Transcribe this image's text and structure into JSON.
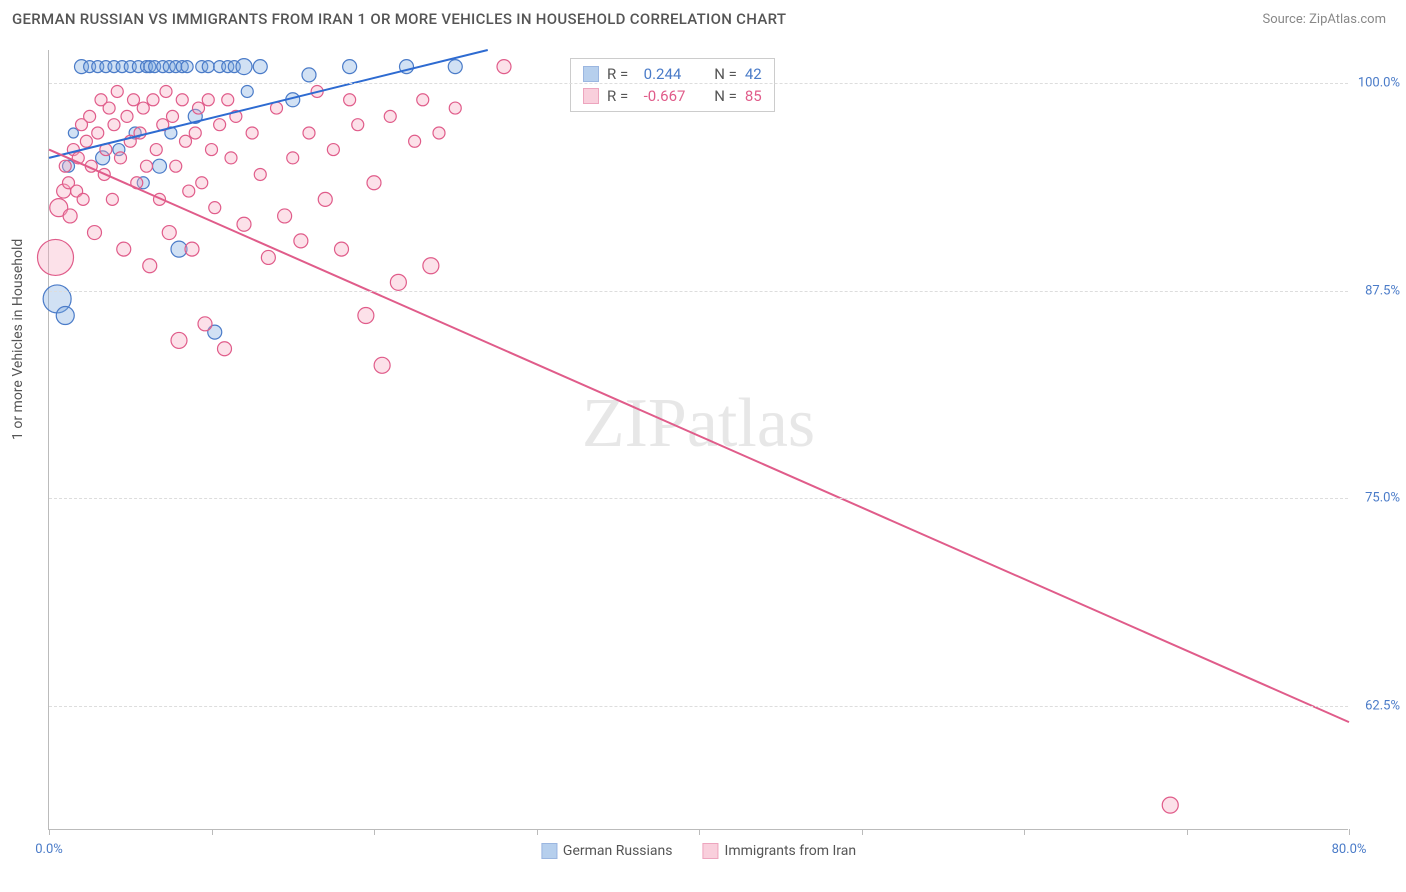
{
  "title": "GERMAN RUSSIAN VS IMMIGRANTS FROM IRAN 1 OR MORE VEHICLES IN HOUSEHOLD CORRELATION CHART",
  "source": "Source: ZipAtlas.com",
  "ylabel": "1 or more Vehicles in Household",
  "watermark_a": "ZIP",
  "watermark_b": "atlas",
  "chart": {
    "type": "scatter",
    "xlim": [
      0,
      80
    ],
    "ylim": [
      55,
      102
    ],
    "x_ticks": [
      0,
      10,
      20,
      30,
      40,
      50,
      60,
      70,
      80
    ],
    "x_tick_labels": {
      "0": "0.0%",
      "80": "80.0%"
    },
    "y_ticks": [
      62.5,
      75.0,
      87.5,
      100.0
    ],
    "y_tick_labels": [
      "62.5%",
      "75.0%",
      "87.5%",
      "100.0%"
    ],
    "grid_color": "#dddddd",
    "axis_color": "#bbbbbb",
    "background_color": "#ffffff",
    "tick_label_color": "#4a7bc8",
    "series": [
      {
        "name": "German Russians",
        "fill": "#7ca8e0",
        "fill_opacity": 0.35,
        "stroke": "#4a7bc8",
        "stroke_width": 1.2,
        "R": "0.244",
        "N": "42",
        "r_color": "#4a7bc8",
        "trend": {
          "x1": 0,
          "y1": 95.5,
          "x2": 27,
          "y2": 102,
          "color": "#2e6bd1",
          "width": 2
        },
        "points": [
          {
            "x": 0.5,
            "y": 87.0,
            "r": 14
          },
          {
            "x": 1.0,
            "y": 86.0,
            "r": 9
          },
          {
            "x": 1.2,
            "y": 95.0,
            "r": 6
          },
          {
            "x": 1.5,
            "y": 97.0,
            "r": 5
          },
          {
            "x": 2.0,
            "y": 101.0,
            "r": 7
          },
          {
            "x": 2.5,
            "y": 101.0,
            "r": 6
          },
          {
            "x": 3.0,
            "y": 101.0,
            "r": 6
          },
          {
            "x": 3.3,
            "y": 95.5,
            "r": 7
          },
          {
            "x": 3.5,
            "y": 101.0,
            "r": 6
          },
          {
            "x": 4.0,
            "y": 101.0,
            "r": 6
          },
          {
            "x": 4.3,
            "y": 96.0,
            "r": 6
          },
          {
            "x": 4.5,
            "y": 101.0,
            "r": 6
          },
          {
            "x": 5.0,
            "y": 101.0,
            "r": 6
          },
          {
            "x": 5.3,
            "y": 97.0,
            "r": 6
          },
          {
            "x": 5.5,
            "y": 101.0,
            "r": 6
          },
          {
            "x": 5.8,
            "y": 94.0,
            "r": 6
          },
          {
            "x": 6.0,
            "y": 101.0,
            "r": 6
          },
          {
            "x": 6.2,
            "y": 101.0,
            "r": 6
          },
          {
            "x": 6.5,
            "y": 101.0,
            "r": 6
          },
          {
            "x": 6.8,
            "y": 95.0,
            "r": 7
          },
          {
            "x": 7.0,
            "y": 101.0,
            "r": 6
          },
          {
            "x": 7.4,
            "y": 101.0,
            "r": 6
          },
          {
            "x": 7.5,
            "y": 97.0,
            "r": 6
          },
          {
            "x": 7.8,
            "y": 101.0,
            "r": 6
          },
          {
            "x": 8.0,
            "y": 90.0,
            "r": 8
          },
          {
            "x": 8.2,
            "y": 101.0,
            "r": 6
          },
          {
            "x": 8.5,
            "y": 101.0,
            "r": 6
          },
          {
            "x": 9.0,
            "y": 98.0,
            "r": 7
          },
          {
            "x": 9.4,
            "y": 101.0,
            "r": 6
          },
          {
            "x": 9.8,
            "y": 101.0,
            "r": 6
          },
          {
            "x": 10.2,
            "y": 85.0,
            "r": 7
          },
          {
            "x": 10.5,
            "y": 101.0,
            "r": 6
          },
          {
            "x": 11.0,
            "y": 101.0,
            "r": 6
          },
          {
            "x": 11.4,
            "y": 101.0,
            "r": 6
          },
          {
            "x": 12.0,
            "y": 101.0,
            "r": 8
          },
          {
            "x": 12.2,
            "y": 99.5,
            "r": 6
          },
          {
            "x": 13.0,
            "y": 101.0,
            "r": 7
          },
          {
            "x": 15.0,
            "y": 99.0,
            "r": 7
          },
          {
            "x": 16.0,
            "y": 100.5,
            "r": 7
          },
          {
            "x": 18.5,
            "y": 101.0,
            "r": 7
          },
          {
            "x": 22.0,
            "y": 101.0,
            "r": 7
          },
          {
            "x": 25.0,
            "y": 101.0,
            "r": 7
          }
        ]
      },
      {
        "name": "Immigrants from Iran",
        "fill": "#f5a8c0",
        "fill_opacity": 0.35,
        "stroke": "#e05c8a",
        "stroke_width": 1.2,
        "R": "-0.667",
        "N": "85",
        "r_color": "#e05c8a",
        "trend": {
          "x1": 0,
          "y1": 96.0,
          "x2": 80,
          "y2": 61.5,
          "color": "#e05c8a",
          "width": 2
        },
        "points": [
          {
            "x": 0.4,
            "y": 89.5,
            "r": 18
          },
          {
            "x": 0.6,
            "y": 92.5,
            "r": 9
          },
          {
            "x": 0.9,
            "y": 93.5,
            "r": 7
          },
          {
            "x": 1.0,
            "y": 95.0,
            "r": 6
          },
          {
            "x": 1.2,
            "y": 94.0,
            "r": 6
          },
          {
            "x": 1.3,
            "y": 92.0,
            "r": 7
          },
          {
            "x": 1.5,
            "y": 96.0,
            "r": 6
          },
          {
            "x": 1.7,
            "y": 93.5,
            "r": 6
          },
          {
            "x": 1.8,
            "y": 95.5,
            "r": 6
          },
          {
            "x": 2.0,
            "y": 97.5,
            "r": 6
          },
          {
            "x": 2.1,
            "y": 93.0,
            "r": 6
          },
          {
            "x": 2.3,
            "y": 96.5,
            "r": 6
          },
          {
            "x": 2.5,
            "y": 98.0,
            "r": 6
          },
          {
            "x": 2.6,
            "y": 95.0,
            "r": 6
          },
          {
            "x": 2.8,
            "y": 91.0,
            "r": 7
          },
          {
            "x": 3.0,
            "y": 97.0,
            "r": 6
          },
          {
            "x": 3.2,
            "y": 99.0,
            "r": 6
          },
          {
            "x": 3.4,
            "y": 94.5,
            "r": 6
          },
          {
            "x": 3.5,
            "y": 96.0,
            "r": 6
          },
          {
            "x": 3.7,
            "y": 98.5,
            "r": 6
          },
          {
            "x": 3.9,
            "y": 93.0,
            "r": 6
          },
          {
            "x": 4.0,
            "y": 97.5,
            "r": 6
          },
          {
            "x": 4.2,
            "y": 99.5,
            "r": 6
          },
          {
            "x": 4.4,
            "y": 95.5,
            "r": 6
          },
          {
            "x": 4.6,
            "y": 90.0,
            "r": 7
          },
          {
            "x": 4.8,
            "y": 98.0,
            "r": 6
          },
          {
            "x": 5.0,
            "y": 96.5,
            "r": 6
          },
          {
            "x": 5.2,
            "y": 99.0,
            "r": 6
          },
          {
            "x": 5.4,
            "y": 94.0,
            "r": 6
          },
          {
            "x": 5.6,
            "y": 97.0,
            "r": 6
          },
          {
            "x": 5.8,
            "y": 98.5,
            "r": 6
          },
          {
            "x": 6.0,
            "y": 95.0,
            "r": 6
          },
          {
            "x": 6.2,
            "y": 89.0,
            "r": 7
          },
          {
            "x": 6.4,
            "y": 99.0,
            "r": 6
          },
          {
            "x": 6.6,
            "y": 96.0,
            "r": 6
          },
          {
            "x": 6.8,
            "y": 93.0,
            "r": 6
          },
          {
            "x": 7.0,
            "y": 97.5,
            "r": 6
          },
          {
            "x": 7.2,
            "y": 99.5,
            "r": 6
          },
          {
            "x": 7.4,
            "y": 91.0,
            "r": 7
          },
          {
            "x": 7.6,
            "y": 98.0,
            "r": 6
          },
          {
            "x": 7.8,
            "y": 95.0,
            "r": 6
          },
          {
            "x": 8.0,
            "y": 84.5,
            "r": 8
          },
          {
            "x": 8.2,
            "y": 99.0,
            "r": 6
          },
          {
            "x": 8.4,
            "y": 96.5,
            "r": 6
          },
          {
            "x": 8.6,
            "y": 93.5,
            "r": 6
          },
          {
            "x": 8.8,
            "y": 90.0,
            "r": 7
          },
          {
            "x": 9.0,
            "y": 97.0,
            "r": 6
          },
          {
            "x": 9.2,
            "y": 98.5,
            "r": 6
          },
          {
            "x": 9.4,
            "y": 94.0,
            "r": 6
          },
          {
            "x": 9.6,
            "y": 85.5,
            "r": 7
          },
          {
            "x": 9.8,
            "y": 99.0,
            "r": 6
          },
          {
            "x": 10.0,
            "y": 96.0,
            "r": 6
          },
          {
            "x": 10.2,
            "y": 92.5,
            "r": 6
          },
          {
            "x": 10.5,
            "y": 97.5,
            "r": 6
          },
          {
            "x": 10.8,
            "y": 84.0,
            "r": 7
          },
          {
            "x": 11.0,
            "y": 99.0,
            "r": 6
          },
          {
            "x": 11.2,
            "y": 95.5,
            "r": 6
          },
          {
            "x": 11.5,
            "y": 98.0,
            "r": 6
          },
          {
            "x": 12.0,
            "y": 91.5,
            "r": 7
          },
          {
            "x": 12.5,
            "y": 97.0,
            "r": 6
          },
          {
            "x": 13.0,
            "y": 94.5,
            "r": 6
          },
          {
            "x": 13.5,
            "y": 89.5,
            "r": 7
          },
          {
            "x": 14.0,
            "y": 98.5,
            "r": 6
          },
          {
            "x": 14.5,
            "y": 92.0,
            "r": 7
          },
          {
            "x": 15.0,
            "y": 95.5,
            "r": 6
          },
          {
            "x": 15.5,
            "y": 90.5,
            "r": 7
          },
          {
            "x": 16.0,
            "y": 97.0,
            "r": 6
          },
          {
            "x": 16.5,
            "y": 99.5,
            "r": 6
          },
          {
            "x": 17.0,
            "y": 93.0,
            "r": 7
          },
          {
            "x": 17.5,
            "y": 96.0,
            "r": 6
          },
          {
            "x": 18.0,
            "y": 90.0,
            "r": 7
          },
          {
            "x": 18.5,
            "y": 99.0,
            "r": 6
          },
          {
            "x": 19.0,
            "y": 97.5,
            "r": 6
          },
          {
            "x": 19.5,
            "y": 86.0,
            "r": 8
          },
          {
            "x": 20.0,
            "y": 94.0,
            "r": 7
          },
          {
            "x": 20.5,
            "y": 83.0,
            "r": 8
          },
          {
            "x": 21.0,
            "y": 98.0,
            "r": 6
          },
          {
            "x": 21.5,
            "y": 88.0,
            "r": 8
          },
          {
            "x": 22.5,
            "y": 96.5,
            "r": 6
          },
          {
            "x": 23.0,
            "y": 99.0,
            "r": 6
          },
          {
            "x": 23.5,
            "y": 89.0,
            "r": 8
          },
          {
            "x": 24.0,
            "y": 97.0,
            "r": 6
          },
          {
            "x": 25.0,
            "y": 98.5,
            "r": 6
          },
          {
            "x": 28.0,
            "y": 101.0,
            "r": 7
          },
          {
            "x": 69.0,
            "y": 56.5,
            "r": 8
          }
        ]
      }
    ]
  },
  "legend_bottom": [
    {
      "label": "German Russians",
      "fill": "#7ca8e0",
      "stroke": "#4a7bc8"
    },
    {
      "label": "Immigrants from Iran",
      "fill": "#f5a8c0",
      "stroke": "#e05c8a"
    }
  ]
}
